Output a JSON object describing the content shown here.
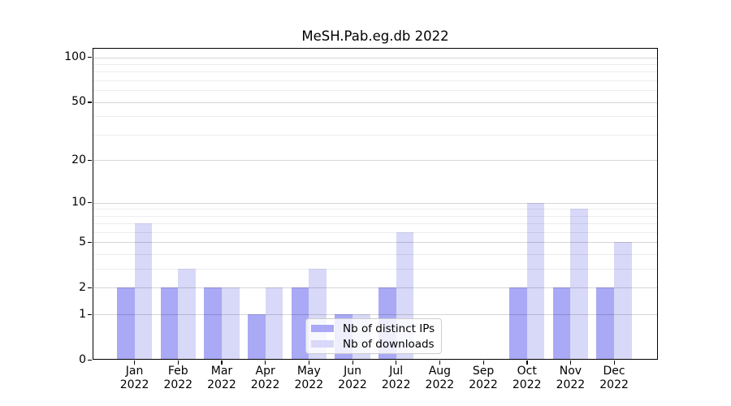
{
  "title": "MeSH.Pab.eg.db 2022",
  "chart_data": {
    "type": "bar",
    "title": "MeSH.Pab.eg.db 2022",
    "categories": [
      "Jan",
      "Feb",
      "Mar",
      "Apr",
      "May",
      "Jun",
      "Jul",
      "Aug",
      "Sep",
      "Oct",
      "Nov",
      "Dec"
    ],
    "category_year": "2022",
    "series": [
      {
        "name": "Nb of distinct IPs",
        "color": "#a9a9f6",
        "values": [
          2,
          2,
          2,
          1,
          2,
          1,
          2,
          0,
          0,
          2,
          2,
          2
        ]
      },
      {
        "name": "Nb of downloads",
        "color": "#d8d8f8",
        "values": [
          7,
          3,
          2,
          2,
          3,
          1,
          6,
          0,
          0,
          10,
          9,
          5
        ]
      }
    ],
    "xlabel": "",
    "ylabel": "",
    "yscale": "log10(value+1)",
    "yticks": [
      0,
      1,
      2,
      5,
      10,
      20,
      50,
      100
    ],
    "yticks_minor": [
      3,
      4,
      6,
      7,
      8,
      9,
      30,
      40,
      60,
      70,
      80,
      90
    ],
    "ylim": [
      0,
      116
    ],
    "grid": true,
    "legend_position": "lower center inside plot"
  }
}
